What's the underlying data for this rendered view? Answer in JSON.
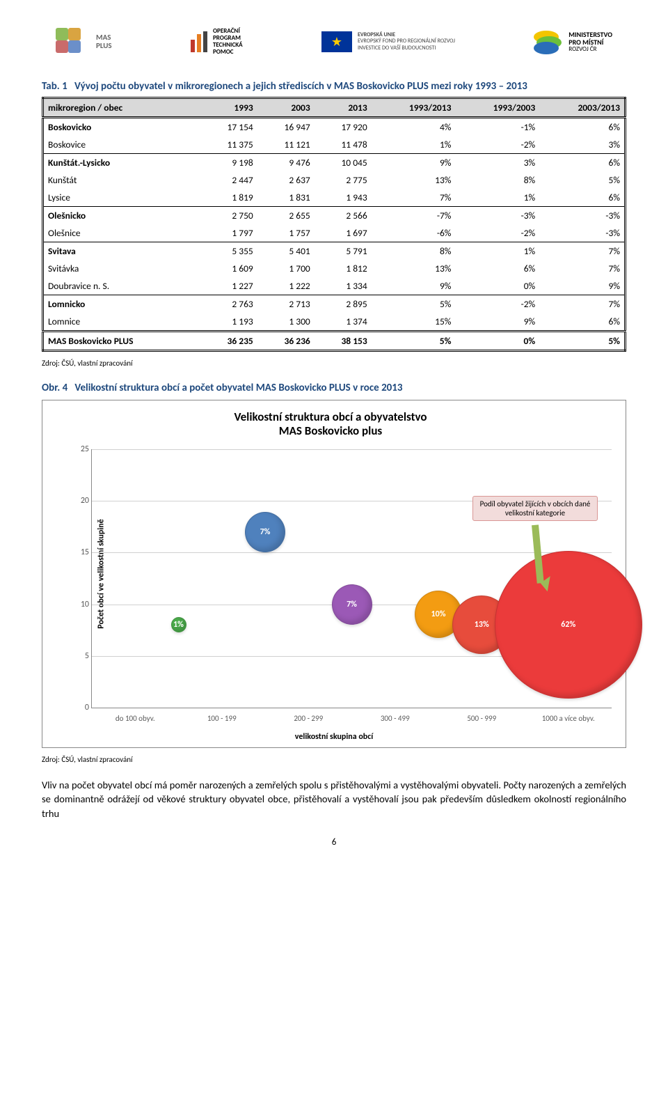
{
  "header": {
    "mas_line1": "MAS",
    "mas_line2": "PLUS",
    "optp_line1": "OPERAČNÍ",
    "optp_line2": "PROGRAM",
    "optp_line3": "TECHNICKÁ",
    "optp_line4": "POMOC",
    "eu_line1": "EVROPSKÁ UNIE",
    "eu_line2": "EVROPSKÝ FOND PRO REGIONÁLNÍ ROZVOJ",
    "eu_line3": "INVESTICE DO VAŠÍ BUDOUCNOSTI",
    "min_line1": "MINISTERSTVO",
    "min_line2": "PRO MÍSTNÍ",
    "min_line3": "ROZVOJ ČR"
  },
  "table_caption_num": "Tab. 1",
  "table_caption_txt": "Vývoj počtu obyvatel v mikroregionech a jejich střediscích v MAS Boskovicko PLUS mezi roky 1993 – 2013",
  "table": {
    "columns": [
      "mikroregion / obec",
      "1993",
      "2003",
      "2013",
      "1993/2013",
      "1993/2003",
      "2003/2013"
    ],
    "rows": [
      {
        "group": true,
        "cells": [
          "Boskovicko",
          "17 154",
          "16 947",
          "17 920",
          "4%",
          "-1%",
          "6%"
        ]
      },
      {
        "group": false,
        "cells": [
          "Boskovice",
          "11 375",
          "11 121",
          "11 478",
          "1%",
          "-2%",
          "3%"
        ]
      },
      {
        "group": true,
        "cells": [
          "Kunštát.-Lysicko",
          "9 198",
          "9 476",
          "10 045",
          "9%",
          "3%",
          "6%"
        ]
      },
      {
        "group": false,
        "cells": [
          "Kunštát",
          "2 447",
          "2 637",
          "2 775",
          "13%",
          "8%",
          "5%"
        ]
      },
      {
        "group": false,
        "cells": [
          "Lysice",
          "1 819",
          "1 831",
          "1 943",
          "7%",
          "1%",
          "6%"
        ]
      },
      {
        "group": true,
        "cells": [
          "Olešnicko",
          "2 750",
          "2 655",
          "2 566",
          "-7%",
          "-3%",
          "-3%"
        ]
      },
      {
        "group": false,
        "cells": [
          "Olešnice",
          "1 797",
          "1 757",
          "1 697",
          "-6%",
          "-2%",
          "-3%"
        ]
      },
      {
        "group": true,
        "cells": [
          "Svitava",
          "5 355",
          "5 401",
          "5 791",
          "8%",
          "1%",
          "7%"
        ]
      },
      {
        "group": false,
        "cells": [
          "Svitávka",
          "1 609",
          "1 700",
          "1 812",
          "13%",
          "6%",
          "7%"
        ]
      },
      {
        "group": false,
        "cells": [
          "Doubravice n. S.",
          "1 227",
          "1 222",
          "1 334",
          "9%",
          "0%",
          "9%"
        ]
      },
      {
        "group": true,
        "cells": [
          "Lomnicko",
          "2 763",
          "2 713",
          "2 895",
          "5%",
          "-2%",
          "7%"
        ]
      },
      {
        "group": false,
        "cells": [
          "Lomnice",
          "1 193",
          "1 300",
          "1 374",
          "15%",
          "9%",
          "6%"
        ]
      }
    ],
    "totals": [
      "MAS Boskovicko PLUS",
      "36 235",
      "36 236",
      "38 153",
      "5%",
      "0%",
      "5%"
    ]
  },
  "source_text": "Zdroj: ČSÚ, vlastní zpracování",
  "fig_caption_num": "Obr. 4",
  "fig_caption_txt": "Velikostní struktura obcí a počet obyvatel MAS Boskovicko PLUS v roce 2013",
  "chart": {
    "title_line1": "Velikostní struktura obcí a obyvatelstvo",
    "title_line2": "MAS Boskovicko plus",
    "ylabel": "Počet obcí ve velikostní skupině",
    "xlabel": "velikostní skupina obcí",
    "ymin": 0,
    "ymax": 25,
    "ytick_step": 5,
    "yticks": [
      "0",
      "5",
      "10",
      "15",
      "20",
      "25"
    ],
    "xcats": [
      "do 100 obyv.",
      "100 - 199",
      "200 - 299",
      "300 - 499",
      "500 - 999",
      "1000 a více obyv."
    ],
    "callout": "Podíl obyvatel žijících v obcích dané velikostní kategorie",
    "bubbles": [
      {
        "x_idx": 0.5,
        "y": 8,
        "label": "1%",
        "size": 22,
        "fill": "#4bac4b",
        "text": "#ffffff"
      },
      {
        "x_idx": 1.5,
        "y": 17,
        "label": "7%",
        "size": 58,
        "fill": "#4f81bd",
        "text": "#ffffff"
      },
      {
        "x_idx": 2.5,
        "y": 10,
        "label": "7%",
        "size": 58,
        "fill": "#9b59b6",
        "text": "#ffffff"
      },
      {
        "x_idx": 3.5,
        "y": 9,
        "label": "10%",
        "size": 68,
        "fill": "#f39c12",
        "text": "#ffffff"
      },
      {
        "x_idx": 4,
        "y": 8,
        "label": "13%",
        "size": 84,
        "fill": "#e74c3c",
        "text": "#ffffff"
      },
      {
        "x_idx": 5,
        "y": 8,
        "label": "62%",
        "size": 212,
        "fill": "#eb3b3b",
        "text": "#ffffff"
      }
    ],
    "grid_color": "#d0d0d0",
    "axis_color": "#888888",
    "bg": "#ffffff"
  },
  "body_paragraph": "Vliv na počet obyvatel obcí má poměr narozených a zemřelých spolu s přistěhovalými a vystěhovalými obyvateli. Počty narozených a zemřelých se dominantně odrážejí od věkové struktury obyvatel obce, přistěhovalí a vystěhovalí jsou pak především důsledkem okolností regionálního trhu",
  "page_number": "6"
}
